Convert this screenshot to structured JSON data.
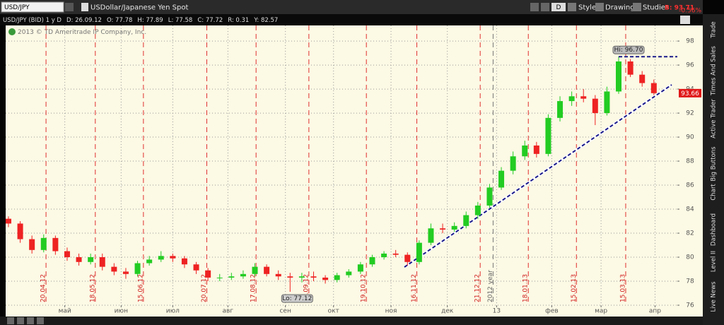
{
  "toolbar": {
    "symbol": "USD/JPY",
    "description": "USDollar/Japanese Yen Spot",
    "aggregation": "D",
    "style": "Style",
    "drawings": "Drawings",
    "studies": "Studies",
    "bid": "B: 93.71",
    "change": "-0.56%"
  },
  "info_bar": [
    "USD/JPY (BID) 1 y D",
    "D: 26.09.12",
    "O: 77.78",
    "H: 77.89",
    "L: 77.58",
    "C: 77.72",
    "R: 0.31",
    "Y: 82.57"
  ],
  "copyright": "2013 © TD Ameritrade IP Company, Inc.",
  "tabs": [
    "Trade",
    "Times And Sales",
    "Active Trader",
    "Big Buttons",
    "Chart",
    "Dashboard",
    "Level II",
    "Live News"
  ],
  "chart_data": {
    "type": "candlestick",
    "up_color": "#22cc22",
    "down_color": "#ee2222",
    "open": [
      83.2,
      82.8,
      81.5,
      80.6,
      81.6,
      80.5,
      80.0,
      79.6,
      80.0,
      79.2,
      78.8,
      78.6,
      79.5,
      79.8,
      80.1,
      79.9,
      79.4,
      78.9,
      78.3,
      78.3,
      78.4,
      78.6,
      79.2,
      78.6,
      78.4,
      78.3,
      78.4,
      78.3,
      78.1,
      78.5,
      78.8,
      79.4,
      80.0,
      80.3,
      80.2,
      79.6,
      81.2,
      82.4,
      82.3,
      82.6,
      83.5,
      84.3,
      85.8,
      87.2,
      88.4,
      89.3,
      88.6,
      91.6,
      93.0,
      93.4,
      93.2,
      92.0,
      93.8,
      96.3,
      95.2,
      94.5
    ],
    "high": [
      83.4,
      83.0,
      81.8,
      81.9,
      81.8,
      80.8,
      80.3,
      80.3,
      80.3,
      79.5,
      79.1,
      79.7,
      80.1,
      80.5,
      80.3,
      80.1,
      79.6,
      79.1,
      78.6,
      78.7,
      78.9,
      79.5,
      79.4,
      78.9,
      78.7,
      78.7,
      78.8,
      78.5,
      78.7,
      79.0,
      79.6,
      80.2,
      80.5,
      80.6,
      80.4,
      81.4,
      82.8,
      82.8,
      82.9,
      83.8,
      84.6,
      86.1,
      87.5,
      88.8,
      89.7,
      89.6,
      91.9,
      93.4,
      93.8,
      94.0,
      93.5,
      94.2,
      96.7,
      96.5,
      95.5,
      94.8
    ],
    "low": [
      82.5,
      81.2,
      80.3,
      80.4,
      80.2,
      79.7,
      79.3,
      79.4,
      78.9,
      78.5,
      78.2,
      78.4,
      79.3,
      79.6,
      79.6,
      79.1,
      78.6,
      78.0,
      78.0,
      78.1,
      78.2,
      78.4,
      78.4,
      78.1,
      77.12,
      77.9,
      78.0,
      77.8,
      77.9,
      78.3,
      78.6,
      79.2,
      79.8,
      80.0,
      79.3,
      79.4,
      81.0,
      82.0,
      82.1,
      82.4,
      83.2,
      84.1,
      85.6,
      86.9,
      88.1,
      88.3,
      88.4,
      91.3,
      92.6,
      92.9,
      91.0,
      91.8,
      93.6,
      95.0,
      94.2,
      93.5
    ],
    "close": [
      82.8,
      81.5,
      80.6,
      81.6,
      80.5,
      80.0,
      79.6,
      80.0,
      79.2,
      78.8,
      78.6,
      79.5,
      79.8,
      80.1,
      79.9,
      79.4,
      78.9,
      78.3,
      78.3,
      78.4,
      78.6,
      79.2,
      78.6,
      78.4,
      78.3,
      78.4,
      78.3,
      78.1,
      78.5,
      78.8,
      79.4,
      80.0,
      80.3,
      80.2,
      79.6,
      81.2,
      82.4,
      82.3,
      82.6,
      83.5,
      84.3,
      85.8,
      87.2,
      88.4,
      89.3,
      88.6,
      91.6,
      93.0,
      93.4,
      93.2,
      92.0,
      93.8,
      96.3,
      95.2,
      94.5,
      93.66
    ],
    "xlim": [
      -0.24,
      57
    ],
    "ylim": [
      76,
      99.3
    ],
    "yticks": [
      76,
      78,
      80,
      82,
      84,
      86,
      88,
      90,
      92,
      94,
      96,
      98
    ],
    "grid": true,
    "xticks": [
      {
        "value": 4.8,
        "label": "май"
      },
      {
        "value": 9.6,
        "label": "июн"
      },
      {
        "value": 14.0,
        "label": "июл"
      },
      {
        "value": 18.7,
        "label": "авг"
      },
      {
        "value": 23.6,
        "label": "сен"
      },
      {
        "value": 27.7,
        "label": "окт"
      },
      {
        "value": 32.6,
        "label": "ноя"
      },
      {
        "value": 37.4,
        "label": "дек"
      },
      {
        "value": 41.6,
        "label": "13"
      },
      {
        "value": 46.3,
        "label": "фев"
      },
      {
        "value": 50.5,
        "label": "мар"
      },
      {
        "value": 55.1,
        "label": "апр"
      }
    ],
    "expirations": [
      {
        "value": 3.2,
        "label": "20.04.12"
      },
      {
        "value": 7.4,
        "label": "18.05.12"
      },
      {
        "value": 11.5,
        "label": "15.06.12"
      },
      {
        "value": 16.9,
        "label": "20.07.12"
      },
      {
        "value": 21.1,
        "label": "17.08.12"
      },
      {
        "value": 25.6,
        "label": "14.09.12"
      },
      {
        "value": 30.5,
        "label": "19.10.12"
      },
      {
        "value": 34.8,
        "label": "16.11.12"
      },
      {
        "value": 40.2,
        "label": "21.12.12"
      },
      {
        "value": 44.3,
        "label": "18.01.13"
      },
      {
        "value": 48.4,
        "label": "15.02.13"
      },
      {
        "value": 52.6,
        "label": "15.03.13"
      }
    ],
    "year_line": {
      "value": 41.3,
      "label": "2012 year"
    },
    "high_marker": {
      "value": 96.7,
      "label": "Hi: 96.70"
    },
    "low_marker": {
      "value": 77.12,
      "label": "Lo: 77.12"
    },
    "last_price": {
      "value": 93.66,
      "label": "93.66"
    }
  }
}
